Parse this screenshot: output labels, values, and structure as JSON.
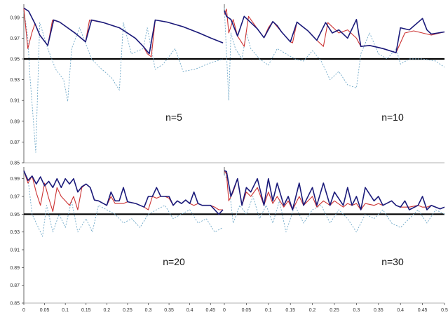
{
  "chart_data": {
    "type": "line",
    "layout": "2x2 panels sharing y axis per row",
    "y_ticks": [
      "0.85",
      "0.87",
      "0.89",
      "0.91",
      "0.93",
      "0.95",
      "0.97",
      "0.99"
    ],
    "ylim": [
      0.85,
      1.0
    ],
    "reference_line": 0.95,
    "colors": {
      "series_a": "#1a1a7a",
      "series_b": "#cc3333",
      "series_c": "#6fa8c8",
      "reference": "#000000"
    },
    "panels": [
      {
        "label": "n=5",
        "xlim": [
          0,
          0.5
        ],
        "x_ticks": [],
        "series": [
          {
            "style": "dark-blue solid",
            "x": [
              0,
              0.012,
              0.028,
              0.04,
              0.06,
              0.075,
              0.09,
              0.11,
              0.13,
              0.155,
              0.17,
              0.2,
              0.24,
              0.28,
              0.3,
              0.315,
              0.33,
              0.36,
              0.4,
              0.44,
              0.47,
              0.5
            ],
            "y": [
              0.999,
              0.996,
              0.984,
              0.973,
              0.963,
              0.9875,
              0.9855,
              0.98,
              0.9745,
              0.9665,
              0.9875,
              0.985,
              0.98,
              0.97,
              0.962,
              0.955,
              0.9875,
              0.9855,
              0.981,
              0.975,
              0.97,
              0.9655
            ]
          },
          {
            "style": "red solid",
            "x": [
              0,
              0.01,
              0.02,
              0.028,
              0.04,
              0.06,
              0.072,
              0.09,
              0.11,
              0.13,
              0.155,
              0.165,
              0.2,
              0.24,
              0.28,
              0.3,
              0.31,
              0.32,
              0.33,
              0.36,
              0.4,
              0.44,
              0.47,
              0.5
            ],
            "y": [
              0.999,
              0.96,
              0.975,
              0.984,
              0.973,
              0.963,
              0.9875,
              0.9855,
              0.98,
              0.9745,
              0.9665,
              0.9875,
              0.985,
              0.98,
              0.97,
              0.962,
              0.955,
              0.952,
              0.9875,
              0.9855,
              0.981,
              0.975,
              0.97,
              0.9655
            ]
          },
          {
            "style": "light-blue dotted",
            "x": [
              0,
              0.005,
              0.01,
              0.015,
              0.02,
              0.025,
              0.03,
              0.04,
              0.06,
              0.08,
              0.1,
              0.11,
              0.12,
              0.14,
              0.16,
              0.17,
              0.19,
              0.22,
              0.24,
              0.25,
              0.27,
              0.3,
              0.31,
              0.33,
              0.35,
              0.37,
              0.38,
              0.4,
              0.43,
              0.46,
              0.5
            ],
            "y": [
              0.995,
              0.985,
              0.97,
              0.935,
              0.91,
              0.885,
              0.86,
              0.985,
              0.96,
              0.94,
              0.93,
              0.909,
              0.96,
              0.98,
              0.96,
              0.95,
              0.942,
              0.932,
              0.92,
              0.985,
              0.955,
              0.96,
              0.98,
              0.94,
              0.945,
              0.955,
              0.96,
              0.938,
              0.94,
              0.945,
              0.95
            ]
          }
        ]
      },
      {
        "label": "n=10",
        "xlim": [
          0,
          0.5
        ],
        "x_ticks": [],
        "series": [
          {
            "style": "dark-blue solid",
            "x": [
              0,
              0.005,
              0.015,
              0.03,
              0.045,
              0.06,
              0.075,
              0.09,
              0.11,
              0.12,
              0.13,
              0.15,
              0.165,
              0.175,
              0.19,
              0.21,
              0.23,
              0.245,
              0.26,
              0.28,
              0.3,
              0.305,
              0.31,
              0.33,
              0.36,
              0.39,
              0.4,
              0.42,
              0.45,
              0.46,
              0.47,
              0.5
            ],
            "y": [
              0.9965,
              0.991,
              0.988,
              0.972,
              0.991,
              0.985,
              0.979,
              0.9705,
              0.986,
              0.982,
              0.976,
              0.9665,
              0.9855,
              0.982,
              0.977,
              0.968,
              0.985,
              0.975,
              0.978,
              0.97,
              0.988,
              0.975,
              0.962,
              0.963,
              0.96,
              0.956,
              0.98,
              0.978,
              0.989,
              0.978,
              0.974,
              0.976
            ]
          },
          {
            "style": "red solid",
            "x": [
              0,
              0.005,
              0.01,
              0.02,
              0.03,
              0.045,
              0.055,
              0.065,
              0.075,
              0.09,
              0.1,
              0.11,
              0.13,
              0.15,
              0.155,
              0.165,
              0.175,
              0.19,
              0.21,
              0.225,
              0.235,
              0.26,
              0.28,
              0.3,
              0.31,
              0.33,
              0.36,
              0.39,
              0.41,
              0.43,
              0.45,
              0.47,
              0.5
            ],
            "y": [
              0.993,
              0.998,
              0.975,
              0.988,
              0.972,
              0.962,
              0.991,
              0.985,
              0.979,
              0.9705,
              0.98,
              0.986,
              0.976,
              0.9665,
              0.9655,
              0.9855,
              0.982,
              0.977,
              0.968,
              0.962,
              0.985,
              0.975,
              0.978,
              0.97,
              0.962,
              0.963,
              0.96,
              0.956,
              0.975,
              0.977,
              0.975,
              0.973,
              0.976
            ]
          },
          {
            "style": "light-blue dotted",
            "x": [
              0,
              0.01,
              0.015,
              0.025,
              0.04,
              0.05,
              0.06,
              0.08,
              0.1,
              0.12,
              0.14,
              0.16,
              0.18,
              0.2,
              0.22,
              0.24,
              0.26,
              0.28,
              0.3,
              0.31,
              0.33,
              0.35,
              0.37,
              0.39,
              0.4,
              0.42,
              0.45,
              0.48,
              0.5
            ],
            "y": [
              0.999,
              0.91,
              0.975,
              0.96,
              0.95,
              0.975,
              0.96,
              0.95,
              0.944,
              0.96,
              0.955,
              0.95,
              0.948,
              0.958,
              0.948,
              0.93,
              0.938,
              0.925,
              0.922,
              0.955,
              0.975,
              0.955,
              0.95,
              0.96,
              0.945,
              0.95,
              0.95,
              0.948,
              0.942
            ]
          }
        ]
      },
      {
        "label": "n=20",
        "xlim": [
          0,
          0.48
        ],
        "x_ticks": [
          "0",
          "0.05",
          "0.1",
          "0.15",
          "0.2",
          "0.25",
          "0.3",
          "0.35",
          "0.4",
          "0.45"
        ],
        "series": [
          {
            "style": "dark-blue solid",
            "x": [
              0,
              0.01,
              0.02,
              0.03,
              0.04,
              0.05,
              0.06,
              0.07,
              0.08,
              0.09,
              0.1,
              0.11,
              0.12,
              0.13,
              0.14,
              0.15,
              0.16,
              0.17,
              0.18,
              0.2,
              0.21,
              0.22,
              0.23,
              0.24,
              0.25,
              0.27,
              0.28,
              0.29,
              0.3,
              0.31,
              0.32,
              0.33,
              0.34,
              0.35,
              0.36,
              0.37,
              0.38,
              0.39,
              0.4,
              0.41,
              0.42,
              0.43,
              0.44,
              0.45,
              0.46,
              0.47,
              0.48
            ],
            "y": [
              0.999,
              0.988,
              0.993,
              0.984,
              0.992,
              0.982,
              0.987,
              0.98,
              0.99,
              0.98,
              0.99,
              0.984,
              0.99,
              0.975,
              0.981,
              0.984,
              0.98,
              0.966,
              0.965,
              0.96,
              0.975,
              0.965,
              0.965,
              0.98,
              0.964,
              0.962,
              0.96,
              0.958,
              0.97,
              0.97,
              0.98,
              0.97,
              0.97,
              0.97,
              0.96,
              0.965,
              0.962,
              0.966,
              0.962,
              0.975,
              0.962,
              0.96,
              0.96,
              0.96,
              0.955,
              0.95,
              0.955
            ]
          },
          {
            "style": "red solid",
            "x": [
              0,
              0.01,
              0.02,
              0.03,
              0.04,
              0.05,
              0.06,
              0.07,
              0.08,
              0.09,
              0.1,
              0.11,
              0.12,
              0.13,
              0.14,
              0.15,
              0.16,
              0.17,
              0.18,
              0.2,
              0.21,
              0.22,
              0.23,
              0.24,
              0.25,
              0.27,
              0.28,
              0.29,
              0.3,
              0.31,
              0.32,
              0.33,
              0.34,
              0.35,
              0.36,
              0.37,
              0.38,
              0.39,
              0.4,
              0.41,
              0.42,
              0.43,
              0.44,
              0.45,
              0.46,
              0.47,
              0.48
            ],
            "y": [
              0.999,
              0.985,
              0.993,
              0.974,
              0.96,
              0.985,
              0.968,
              0.953,
              0.98,
              0.97,
              0.965,
              0.96,
              0.97,
              0.955,
              0.98,
              0.984,
              0.98,
              0.966,
              0.965,
              0.96,
              0.97,
              0.962,
              0.962,
              0.962,
              0.964,
              0.962,
              0.96,
              0.958,
              0.955,
              0.97,
              0.968,
              0.97,
              0.97,
              0.968,
              0.96,
              0.965,
              0.962,
              0.966,
              0.962,
              0.96,
              0.962,
              0.96,
              0.96,
              0.96,
              0.958,
              0.955,
              0.955
            ]
          },
          {
            "style": "light-blue dotted",
            "x": [
              0,
              0.01,
              0.02,
              0.03,
              0.045,
              0.055,
              0.07,
              0.085,
              0.1,
              0.115,
              0.13,
              0.15,
              0.165,
              0.18,
              0.2,
              0.22,
              0.24,
              0.26,
              0.28,
              0.3,
              0.32,
              0.34,
              0.36,
              0.38,
              0.4,
              0.42,
              0.44,
              0.46,
              0.48
            ],
            "y": [
              0.997,
              0.99,
              0.95,
              0.94,
              0.925,
              0.96,
              0.93,
              0.95,
              0.935,
              0.965,
              0.93,
              0.945,
              0.93,
              0.96,
              0.955,
              0.95,
              0.94,
              0.945,
              0.935,
              0.95,
              0.955,
              0.96,
              0.945,
              0.95,
              0.955,
              0.94,
              0.945,
              0.93,
              0.935
            ]
          }
        ]
      },
      {
        "label": "n=30",
        "xlim": [
          0,
          0.5
        ],
        "x_ticks": [
          "0",
          "0.05",
          "0.1",
          "0.15",
          "0.2",
          "0.25",
          "0.3",
          "0.35",
          "0.4",
          "0.45",
          "0.5"
        ],
        "series": [
          {
            "style": "dark-blue solid",
            "x": [
              0,
              0.005,
              0.015,
              0.03,
              0.04,
              0.05,
              0.06,
              0.075,
              0.09,
              0.1,
              0.11,
              0.12,
              0.135,
              0.145,
              0.155,
              0.17,
              0.18,
              0.2,
              0.21,
              0.225,
              0.24,
              0.25,
              0.27,
              0.28,
              0.29,
              0.3,
              0.31,
              0.32,
              0.34,
              0.35,
              0.36,
              0.38,
              0.39,
              0.4,
              0.41,
              0.42,
              0.44,
              0.45,
              0.46,
              0.47,
              0.48,
              0.49,
              0.5
            ],
            "y": [
              0.999,
              0.998,
              0.97,
              0.99,
              0.96,
              0.98,
              0.975,
              0.99,
              0.96,
              0.99,
              0.965,
              0.985,
              0.96,
              0.97,
              0.955,
              0.985,
              0.96,
              0.98,
              0.96,
              0.985,
              0.96,
              0.975,
              0.96,
              0.98,
              0.96,
              0.97,
              0.955,
              0.98,
              0.965,
              0.97,
              0.96,
              0.965,
              0.96,
              0.958,
              0.965,
              0.955,
              0.96,
              0.97,
              0.955,
              0.96,
              0.958,
              0.956,
              0.958
            ]
          },
          {
            "style": "red solid",
            "x": [
              0,
              0.005,
              0.01,
              0.02,
              0.03,
              0.04,
              0.05,
              0.06,
              0.075,
              0.09,
              0.1,
              0.11,
              0.12,
              0.135,
              0.145,
              0.155,
              0.17,
              0.18,
              0.2,
              0.21,
              0.225,
              0.24,
              0.25,
              0.27,
              0.28,
              0.29,
              0.3,
              0.31,
              0.32,
              0.34,
              0.35,
              0.36,
              0.38,
              0.39,
              0.4,
              0.41,
              0.42,
              0.44,
              0.45,
              0.46,
              0.47,
              0.48,
              0.49,
              0.5
            ],
            "y": [
              0.999,
              0.995,
              0.965,
              0.975,
              0.99,
              0.96,
              0.975,
              0.97,
              0.98,
              0.96,
              0.975,
              0.962,
              0.97,
              0.958,
              0.965,
              0.955,
              0.97,
              0.96,
              0.97,
              0.958,
              0.965,
              0.96,
              0.965,
              0.958,
              0.962,
              0.96,
              0.962,
              0.955,
              0.962,
              0.96,
              0.962,
              0.96,
              0.965,
              0.96,
              0.958,
              0.958,
              0.958,
              0.96,
              0.958,
              0.958,
              0.96,
              0.958,
              0.956,
              0.958
            ]
          },
          {
            "style": "light-blue dotted",
            "x": [
              0,
              0.01,
              0.02,
              0.035,
              0.05,
              0.065,
              0.08,
              0.095,
              0.11,
              0.125,
              0.14,
              0.16,
              0.18,
              0.2,
              0.22,
              0.24,
              0.26,
              0.28,
              0.3,
              0.32,
              0.34,
              0.36,
              0.38,
              0.4,
              0.42,
              0.44,
              0.46,
              0.48,
              0.5
            ],
            "y": [
              0.995,
              0.985,
              0.94,
              0.96,
              0.95,
              0.97,
              0.945,
              0.96,
              0.94,
              0.965,
              0.93,
              0.96,
              0.94,
              0.955,
              0.96,
              0.94,
              0.955,
              0.945,
              0.93,
              0.95,
              0.945,
              0.955,
              0.94,
              0.935,
              0.945,
              0.955,
              0.94,
              0.955,
              0.95
            ]
          }
        ]
      }
    ]
  }
}
